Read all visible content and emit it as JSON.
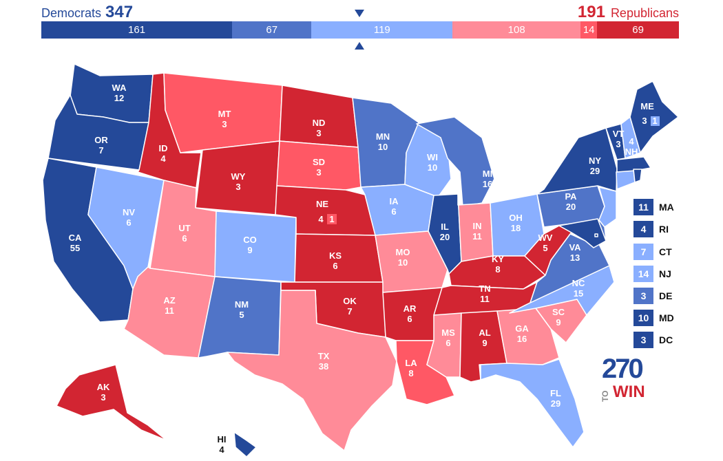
{
  "header": {
    "dem_label": "Democrats",
    "dem_total": "347",
    "rep_total": "191",
    "rep_label": "Republicans"
  },
  "bar": [
    {
      "value": "161",
      "color": "#244999"
    },
    {
      "value": "67",
      "color": "#5074c8"
    },
    {
      "value": "119",
      "color": "#8aafff"
    },
    {
      "value": "108",
      "color": "#ff8b98"
    },
    {
      "value": "14",
      "color": "#ff5865"
    },
    {
      "value": "69",
      "color": "#d22532"
    }
  ],
  "colors": {
    "solid_d": "#244999",
    "likely_d": "#5074c8",
    "lean_d": "#8aafff",
    "lean_r": "#ff8b98",
    "likely_r": "#ff5865",
    "solid_r": "#d22532"
  },
  "labels": {
    "WA": {
      "abbr": "WA",
      "ev": "12"
    },
    "OR": {
      "abbr": "OR",
      "ev": "7"
    },
    "CA": {
      "abbr": "CA",
      "ev": "55"
    },
    "NV": {
      "abbr": "NV",
      "ev": "6"
    },
    "ID": {
      "abbr": "ID",
      "ev": "4"
    },
    "MT": {
      "abbr": "MT",
      "ev": "3"
    },
    "WY": {
      "abbr": "WY",
      "ev": "3"
    },
    "UT": {
      "abbr": "UT",
      "ev": "6"
    },
    "AZ": {
      "abbr": "AZ",
      "ev": "11"
    },
    "CO": {
      "abbr": "CO",
      "ev": "9"
    },
    "NM": {
      "abbr": "NM",
      "ev": "5"
    },
    "ND": {
      "abbr": "ND",
      "ev": "3"
    },
    "SD": {
      "abbr": "SD",
      "ev": "3"
    },
    "NE": {
      "abbr": "NE",
      "ev": "4",
      "district": "1"
    },
    "KS": {
      "abbr": "KS",
      "ev": "6"
    },
    "OK": {
      "abbr": "OK",
      "ev": "7"
    },
    "TX": {
      "abbr": "TX",
      "ev": "38"
    },
    "MN": {
      "abbr": "MN",
      "ev": "10"
    },
    "IA": {
      "abbr": "IA",
      "ev": "6"
    },
    "MO": {
      "abbr": "MO",
      "ev": "10"
    },
    "AR": {
      "abbr": "AR",
      "ev": "6"
    },
    "LA": {
      "abbr": "LA",
      "ev": "8"
    },
    "WI": {
      "abbr": "WI",
      "ev": "10"
    },
    "IL": {
      "abbr": "IL",
      "ev": "20"
    },
    "MI": {
      "abbr": "MI",
      "ev": "16"
    },
    "IN": {
      "abbr": "IN",
      "ev": "11"
    },
    "OH": {
      "abbr": "OH",
      "ev": "18"
    },
    "KY": {
      "abbr": "KY",
      "ev": "8"
    },
    "TN": {
      "abbr": "TN",
      "ev": "11"
    },
    "MS": {
      "abbr": "MS",
      "ev": "6"
    },
    "AL": {
      "abbr": "AL",
      "ev": "9"
    },
    "GA": {
      "abbr": "GA",
      "ev": "16"
    },
    "FL": {
      "abbr": "FL",
      "ev": "29"
    },
    "SC": {
      "abbr": "SC",
      "ev": "9"
    },
    "NC": {
      "abbr": "NC",
      "ev": "15"
    },
    "VA": {
      "abbr": "VA",
      "ev": "13"
    },
    "WV": {
      "abbr": "WV",
      "ev": "5"
    },
    "PA": {
      "abbr": "PA",
      "ev": "20"
    },
    "NY": {
      "abbr": "NY",
      "ev": "29"
    },
    "VT": {
      "abbr": "VT",
      "ev": "3"
    },
    "NH": {
      "abbr": "NH",
      "ev": "4"
    },
    "ME": {
      "abbr": "ME",
      "ev": "3",
      "district": "1"
    },
    "AK": {
      "abbr": "AK",
      "ev": "3"
    },
    "HI": {
      "abbr": "HI",
      "ev": "4"
    }
  },
  "legend": [
    {
      "ev": "11",
      "state": "MA",
      "color": "#244999"
    },
    {
      "ev": "4",
      "state": "RI",
      "color": "#244999"
    },
    {
      "ev": "7",
      "state": "CT",
      "color": "#8aafff"
    },
    {
      "ev": "14",
      "state": "NJ",
      "color": "#8aafff"
    },
    {
      "ev": "3",
      "state": "DE",
      "color": "#5074c8"
    },
    {
      "ev": "10",
      "state": "MD",
      "color": "#244999"
    },
    {
      "ev": "3",
      "state": "DC",
      "color": "#244999"
    }
  ],
  "logo": {
    "num": "270",
    "to": "TO",
    "win": "WIN"
  }
}
